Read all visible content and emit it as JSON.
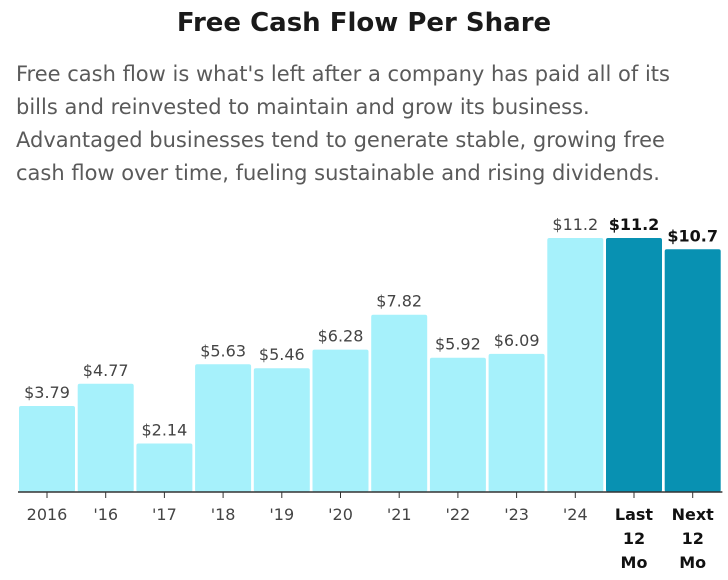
{
  "title": "Free Cash Flow Per Share",
  "description": [
    "Free cash flow is what's left after a company has paid all of its",
    "bills and reinvested to maintain and grow its business.",
    "Advantaged businesses tend to generate stable, growing free",
    "cash flow over time, fueling sustainable and rising dividends."
  ],
  "colors": {
    "bar": "#a6f1fb",
    "bar_highlight": "#0891b2",
    "axis": "#333333",
    "label": "#444444"
  },
  "chart_data": {
    "type": "bar",
    "title": "Free Cash Flow Per Share",
    "xlabel": "",
    "ylabel": "",
    "ylim": [
      0,
      11.2
    ],
    "grid": false,
    "categories": [
      "2016",
      "'16",
      "'17",
      "'18",
      "'19",
      "'20",
      "'21",
      "'22",
      "'23",
      "'24",
      "Last 12 Mo",
      "Next 12 Mo"
    ],
    "category_lines": [
      [
        "2016"
      ],
      [
        "'16"
      ],
      [
        "'17"
      ],
      [
        "'18"
      ],
      [
        "'19"
      ],
      [
        "'20"
      ],
      [
        "'21"
      ],
      [
        "'22"
      ],
      [
        "'23"
      ],
      [
        "'24"
      ],
      [
        "Last",
        "12",
        "Mo"
      ],
      [
        "Next",
        "12",
        "Mo"
      ]
    ],
    "values": [
      3.79,
      4.77,
      2.14,
      5.63,
      5.46,
      6.28,
      7.82,
      5.92,
      6.09,
      11.2,
      11.2,
      10.7
    ],
    "value_labels": [
      "$3.79",
      "$4.77",
      "$2.14",
      "$5.63",
      "$5.46",
      "$6.28",
      "$7.82",
      "$5.92",
      "$6.09",
      "$11.2",
      "$11.2",
      "$10.7"
    ],
    "highlighted": [
      false,
      false,
      false,
      false,
      false,
      false,
      false,
      false,
      false,
      false,
      true,
      true
    ]
  }
}
